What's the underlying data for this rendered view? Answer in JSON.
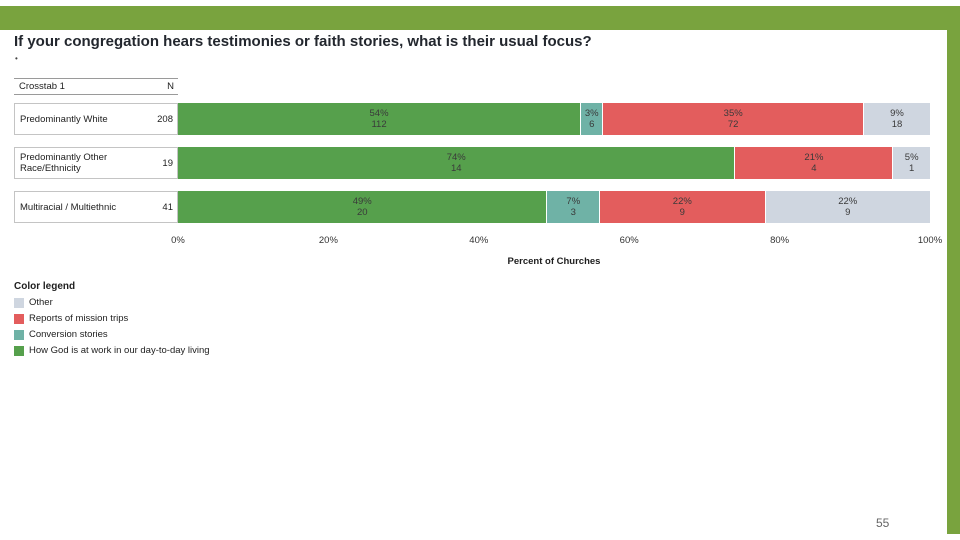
{
  "slide": {
    "title": "If your congregation hears testimonies or faith stories, what is their usual focus?",
    "bullet": "•",
    "page_number": "55",
    "accent_color": "#79A33E"
  },
  "chart_data": {
    "type": "bar",
    "orientation": "horizontal",
    "stacked": true,
    "table_header": {
      "crosstab": "Crosstab 1",
      "n": "N"
    },
    "xlabel": "Percent of Churches",
    "x_ticks": [
      "0%",
      "20%",
      "40%",
      "60%",
      "80%",
      "100%"
    ],
    "xlim": [
      0,
      100
    ],
    "colors": {
      "How God is at work in our day-to-day living": "#56A04C",
      "Conversion stories": "#6FB2A6",
      "Reports of mission trips": "#E35D5D",
      "Other": "#CFD6E0"
    },
    "rows": [
      {
        "label": "Predominantly White",
        "n": "208",
        "segments": [
          {
            "series": "How God is at work in our day-to-day living",
            "pct": 54,
            "count": 112
          },
          {
            "series": "Conversion stories",
            "pct": 3,
            "count": 6
          },
          {
            "series": "Reports of mission trips",
            "pct": 35,
            "count": 72
          },
          {
            "series": "Other",
            "pct": 9,
            "count": 18
          }
        ]
      },
      {
        "label": "Predominantly Other Race/Ethnicity",
        "n": "19",
        "segments": [
          {
            "series": "How God is at work in our day-to-day living",
            "pct": 74,
            "count": 14
          },
          {
            "series": "Reports of mission trips",
            "pct": 21,
            "count": 4
          },
          {
            "series": "Other",
            "pct": 5,
            "count": 1
          }
        ]
      },
      {
        "label": "Multiracial / Multiethnic",
        "n": "41",
        "segments": [
          {
            "series": "How God is at work in our day-to-day living",
            "pct": 49,
            "count": 20
          },
          {
            "series": "Conversion stories",
            "pct": 7,
            "count": 3
          },
          {
            "series": "Reports of mission trips",
            "pct": 22,
            "count": 9
          },
          {
            "series": "Other",
            "pct": 22,
            "count": 9
          }
        ]
      }
    ],
    "legend": {
      "title": "Color legend",
      "items": [
        {
          "label": "Other",
          "color": "#CFD6E0"
        },
        {
          "label": "Reports of mission trips",
          "color": "#E35D5D"
        },
        {
          "label": "Conversion stories",
          "color": "#6FB2A6"
        },
        {
          "label": "How God is at work in our day-to-day living",
          "color": "#56A04C"
        }
      ]
    }
  }
}
